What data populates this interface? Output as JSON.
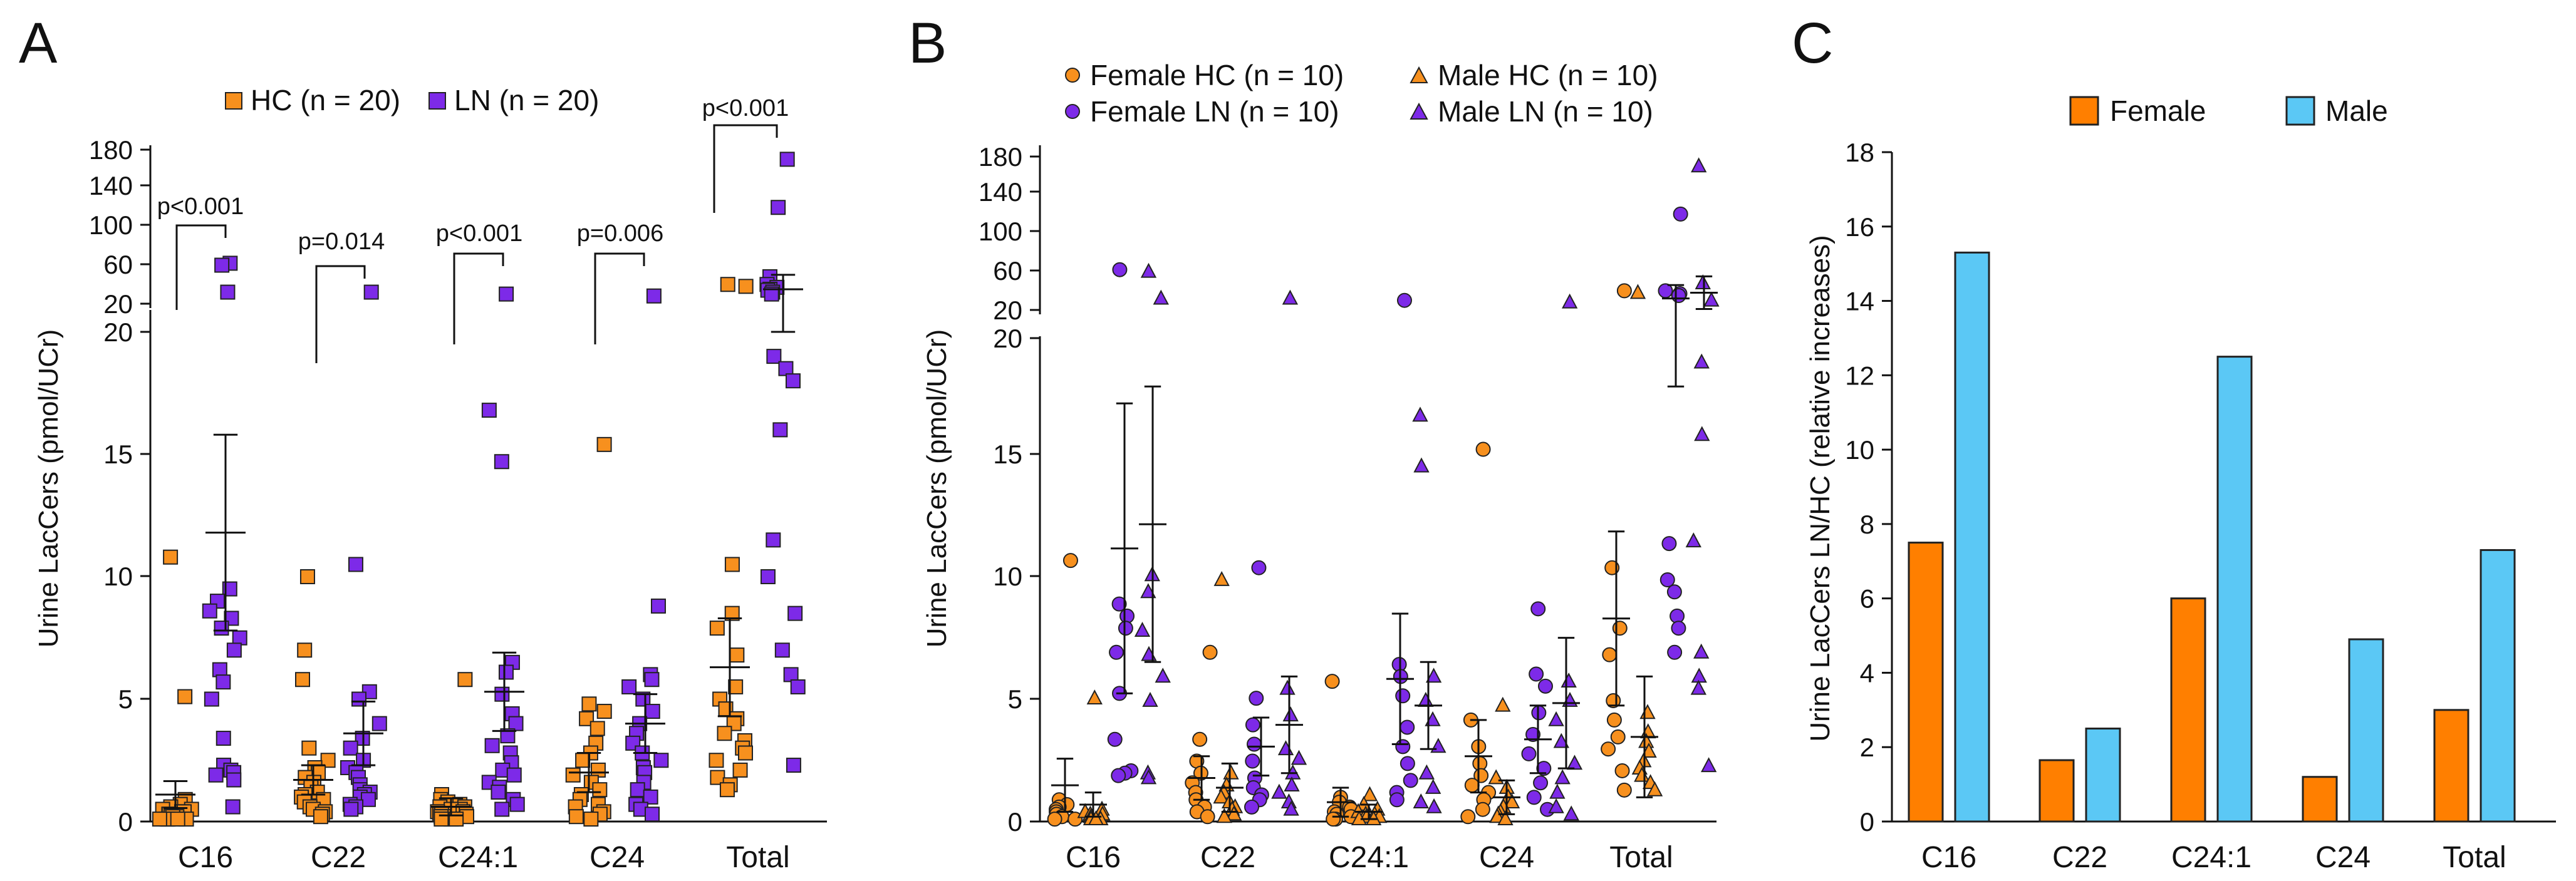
{
  "colors": {
    "hc": "#f7901e",
    "ln": "#7d2ae8",
    "female_bar": "#ff7f00",
    "male_bar": "#5bc8f5"
  },
  "chart_data": [
    {
      "panel": "A",
      "type": "scatter",
      "ylabel": "Urine LacCers (pmol/UCr)",
      "categories": [
        "C16",
        "C22",
        "C24:1",
        "C24",
        "Total"
      ],
      "ylim_lower": [
        0,
        20
      ],
      "ylim_upper": [
        20,
        180
      ],
      "yticks_lower": [
        "0",
        "5",
        "10",
        "15",
        "20"
      ],
      "yticks_upper": [
        "20",
        "60",
        "100",
        "140",
        "180"
      ],
      "legend": [
        {
          "key": "HC",
          "label": "HC (n = 20)",
          "marker": "square",
          "color": "#f7901e"
        },
        {
          "key": "LN",
          "label": "LN (n = 20)",
          "marker": "square",
          "color": "#7d2ae8"
        }
      ],
      "pvalues": [
        "p<0.001",
        "p=0.014",
        "p<0.001",
        "p=0.006",
        "p<0.001"
      ],
      "series": [
        {
          "name": "HC",
          "mean": [
            1.1,
            1.7,
            0.6,
            2.0,
            6.3
          ],
          "sem": [
            0.55,
            0.6,
            0.35,
            0.8,
            2.0
          ],
          "values": [
            [
              10.8,
              5.1,
              0.9,
              0.7,
              0.6,
              0.5,
              0.5,
              0.4,
              0.4,
              0.3,
              0.3,
              0.2,
              0.2,
              0.2,
              0.1,
              0.1,
              0.1,
              0.1,
              0.1,
              0.1
            ],
            [
              10.0,
              7.0,
              5.8,
              3.0,
              2.5,
              2.2,
              2.0,
              1.8,
              1.6,
              1.4,
              1.2,
              1.1,
              1.0,
              0.9,
              0.8,
              0.6,
              0.5,
              0.4,
              0.3,
              0.2
            ],
            [
              5.8,
              1.1,
              0.9,
              0.8,
              0.7,
              0.6,
              0.6,
              0.5,
              0.5,
              0.4,
              0.4,
              0.3,
              0.3,
              0.3,
              0.2,
              0.2,
              0.2,
              0.1,
              0.1,
              0.1
            ],
            [
              15.4,
              4.8,
              4.5,
              4.2,
              3.8,
              3.2,
              2.8,
              2.5,
              2.1,
              1.9,
              1.6,
              1.3,
              1.1,
              0.9,
              0.7,
              0.6,
              0.4,
              0.3,
              0.2,
              0.1
            ],
            [
              40,
              38,
              10.5,
              8.5,
              7.9,
              6.8,
              5.5,
              5.0,
              4.6,
              4.2,
              4.0,
              3.6,
              3.3,
              3.0,
              2.8,
              2.5,
              2.1,
              1.8,
              1.5,
              1.3
            ]
          ]
        },
        {
          "name": "LN",
          "mean": [
            11.8,
            3.6,
            5.3,
            4.0,
            35
          ],
          "sem": [
            4.0,
            1.3,
            1.6,
            1.2,
            15
          ],
          "values": [
            [
              62,
              60,
              32,
              9.5,
              9.0,
              8.6,
              8.3,
              7.9,
              7.5,
              7.0,
              6.2,
              5.7,
              5.0,
              3.4,
              2.3,
              2.1,
              2.0,
              1.9,
              1.7,
              0.6
            ],
            [
              32,
              10.5,
              5.3,
              5.0,
              4.0,
              3.4,
              3.0,
              2.5,
              2.2,
              2.0,
              1.8,
              1.5,
              1.3,
              1.2,
              1.1,
              1.0,
              0.9,
              0.7,
              0.6,
              0.5
            ],
            [
              30,
              16.8,
              14.7,
              6.5,
              6.1,
              5.2,
              4.4,
              4.0,
              3.5,
              3.1,
              2.8,
              2.4,
              2.1,
              1.9,
              1.6,
              1.4,
              1.2,
              0.9,
              0.7,
              0.5
            ],
            [
              28,
              8.8,
              6.0,
              5.8,
              5.5,
              5.0,
              4.5,
              4.0,
              3.6,
              3.2,
              2.8,
              2.5,
              2.2,
              2.0,
              1.6,
              1.3,
              1.0,
              0.7,
              0.5,
              0.3
            ],
            [
              170,
              120,
              48,
              40,
              37,
              35,
              34,
              32,
              19,
              18.5,
              18,
              16,
              11.5,
              10,
              8.5,
              7.0,
              6.0,
              5.5,
              2.3,
              30
            ]
          ]
        }
      ]
    },
    {
      "panel": "B",
      "type": "scatter",
      "ylabel": "Urine LacCers (pmol/UCr)",
      "categories": [
        "C16",
        "C22",
        "C24:1",
        "C24",
        "Total"
      ],
      "ylim_lower": [
        0,
        20
      ],
      "ylim_upper": [
        20,
        180
      ],
      "yticks_lower": [
        "0",
        "5",
        "10",
        "15",
        "20"
      ],
      "yticks_upper": [
        "20",
        "60",
        "100",
        "140",
        "180"
      ],
      "legend": [
        {
          "key": "FHC",
          "label": "Female HC (n = 10)",
          "marker": "circle",
          "color": "#f7901e"
        },
        {
          "key": "MHC",
          "label": "Male HC (n = 10)",
          "marker": "triangle",
          "color": "#f7901e"
        },
        {
          "key": "FLN",
          "label": "Female LN (n = 10)",
          "marker": "circle",
          "color": "#7d2ae8"
        },
        {
          "key": "MLN",
          "label": "Male LN (n = 10)",
          "marker": "triangle",
          "color": "#7d2ae8"
        }
      ],
      "series": [
        {
          "name": "Female HC",
          "marker": "circle",
          "color": "#f7901e",
          "mean": [
            1.5,
            1.8,
            0.8,
            2.7,
            8.4
          ],
          "sem": [
            1.1,
            0.9,
            0.6,
            1.5,
            3.6
          ],
          "values": [
            [
              10.8,
              0.9,
              0.7,
              0.6,
              0.5,
              0.4,
              0.3,
              0.2,
              0.1,
              0.1
            ],
            [
              7.0,
              3.4,
              2.5,
              2.0,
              1.6,
              1.2,
              0.9,
              0.6,
              0.4,
              0.2
            ],
            [
              5.8,
              1.0,
              0.8,
              0.6,
              0.5,
              0.4,
              0.3,
              0.2,
              0.1,
              0.1
            ],
            [
              15.4,
              4.2,
              3.1,
              2.4,
              1.9,
              1.5,
              1.2,
              0.9,
              0.5,
              0.2
            ],
            [
              40,
              10.5,
              8.0,
              6.9,
              5.0,
              4.2,
              3.5,
              3.0,
              2.1,
              1.3
            ]
          ]
        },
        {
          "name": "Male HC",
          "marker": "triangle",
          "color": "#f7901e",
          "mean": [
            0.7,
            1.4,
            0.4,
            1.0,
            3.5
          ],
          "sem": [
            0.5,
            1.0,
            0.3,
            0.7,
            2.5
          ],
          "values": [
            [
              5.1,
              0.5,
              0.4,
              0.3,
              0.3,
              0.2,
              0.2,
              0.1,
              0.1,
              0.1
            ],
            [
              10.0,
              2.0,
              1.5,
              1.2,
              1.0,
              0.8,
              0.6,
              0.5,
              0.3,
              0.2
            ],
            [
              1.1,
              0.7,
              0.5,
              0.4,
              0.3,
              0.3,
              0.2,
              0.2,
              0.1,
              0.1
            ],
            [
              4.8,
              1.8,
              1.4,
              1.0,
              0.8,
              0.6,
              0.4,
              0.3,
              0.2,
              0.1
            ],
            [
              38,
              4.5,
              3.7,
              3.3,
              2.9,
              2.5,
              2.2,
              1.9,
              1.6,
              1.3
            ]
          ]
        },
        {
          "name": "Female LN",
          "marker": "circle",
          "color": "#7d2ae8",
          "mean": [
            11.3,
            3.1,
            5.9,
            3.4,
            32
          ],
          "sem": [
            6.0,
            1.2,
            2.7,
            1.4,
            14
          ],
          "values": [
            [
              62,
              9.0,
              8.5,
              8.0,
              7.0,
              5.3,
              3.4,
              2.1,
              2.0,
              1.9
            ],
            [
              10.5,
              5.1,
              4.0,
              3.2,
              2.5,
              1.8,
              1.4,
              1.1,
              0.9,
              0.6
            ],
            [
              30,
              6.5,
              6.0,
              5.2,
              3.9,
              3.1,
              2.4,
              1.7,
              1.2,
              0.9
            ],
            [
              8.8,
              6.1,
              5.6,
              4.5,
              3.6,
              2.8,
              2.2,
              1.6,
              1.0,
              0.5
            ],
            [
              120,
              40,
              37,
              35,
              11.5,
              10.0,
              9.5,
              8.5,
              8.0,
              7.0
            ]
          ]
        },
        {
          "name": "Male LN",
          "marker": "triangle",
          "color": "#7d2ae8",
          "mean": [
            12.3,
            4.0,
            4.8,
            4.9,
            38
          ],
          "sem": [
            5.7,
            2.0,
            1.8,
            2.7,
            17
          ],
          "values": [
            [
              60,
              32,
              10.2,
              9.5,
              7.9,
              6.9,
              6.0,
              5.0,
              2.0,
              1.8
            ],
            [
              32,
              5.5,
              4.4,
              3.0,
              2.6,
              2.0,
              1.5,
              1.2,
              0.8,
              0.5
            ],
            [
              16.8,
              14.7,
              6.0,
              5.0,
              4.2,
              3.1,
              2.0,
              1.4,
              0.8,
              0.6
            ],
            [
              28,
              5.8,
              5.0,
              4.2,
              3.3,
              2.4,
              1.8,
              1.2,
              0.6,
              0.3
            ],
            [
              170,
              48,
              30,
              19,
              16,
              11.6,
              7.0,
              6.0,
              5.5,
              2.3
            ]
          ]
        }
      ]
    },
    {
      "panel": "C",
      "type": "bar",
      "ylabel": "Urine LacCers LN/HC (relative increases)",
      "categories": [
        "C16",
        "C22",
        "C24:1",
        "C24",
        "Total"
      ],
      "ylim": [
        0,
        18
      ],
      "yticks": [
        "0",
        "2",
        "4",
        "6",
        "8",
        "10",
        "12",
        "14",
        "16",
        "18"
      ],
      "legend": [
        "Female",
        "Male"
      ],
      "series": [
        {
          "name": "Female",
          "values": [
            7.5,
            1.65,
            6.0,
            1.2,
            3.0
          ]
        },
        {
          "name": "Male",
          "values": [
            15.3,
            2.5,
            12.5,
            4.9,
            7.3
          ]
        }
      ]
    }
  ]
}
